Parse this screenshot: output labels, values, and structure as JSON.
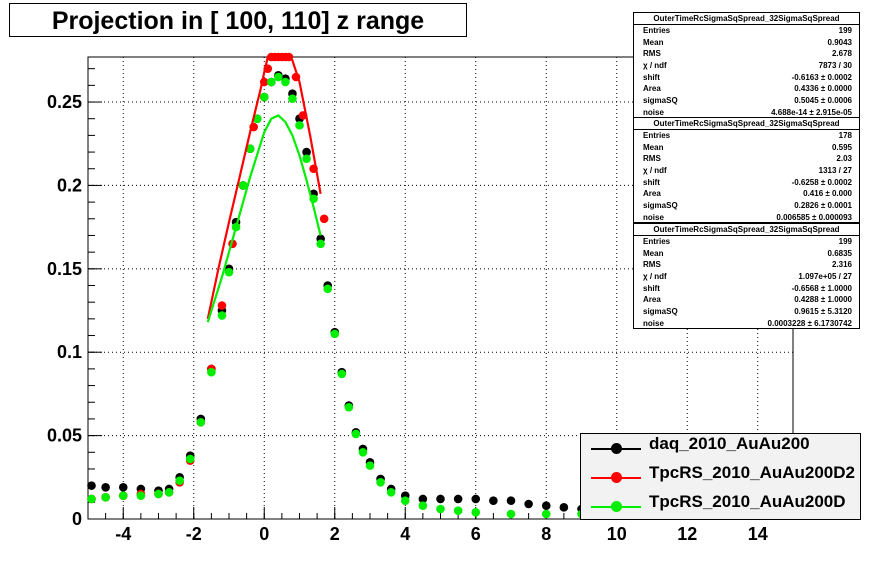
{
  "title": "Projection in [ 100, 110] z range",
  "stats": [
    {
      "header": "OuterTimeRcSigmaSqSpread_32SigmaSqSpread",
      "rows": [
        [
          "Entries",
          "199"
        ],
        [
          "Mean",
          "0.9043"
        ],
        [
          "RMS",
          "2.678"
        ],
        [
          "χ  / ndf",
          "7873 / 30"
        ],
        [
          "shift",
          "-0.6163 ± 0.0002"
        ],
        [
          "Area",
          "0.4336 ± 0.0000"
        ],
        [
          "sigmaSQ",
          "0.5045 ± 0.0006"
        ],
        [
          "noise",
          "4.688e-14 ± 2.915e-05"
        ]
      ]
    },
    {
      "header": "OuterTimeRcSigmaSqSpread_32SigmaSqSpread",
      "rows": [
        [
          "Entries",
          "178"
        ],
        [
          "Mean",
          "0.595"
        ],
        [
          "RMS",
          "2.03"
        ],
        [
          "χ  / ndf",
          "1313 / 27"
        ],
        [
          "shift",
          "-0.6258 ± 0.0002"
        ],
        [
          "Area",
          "0.416 ± 0.000"
        ],
        [
          "sigmaSQ",
          "0.2826 ± 0.0001"
        ],
        [
          "noise",
          "0.006585 ± 0.000093"
        ]
      ]
    },
    {
      "header": "OuterTimeRcSigmaSqSpread_32SigmaSqSpread",
      "rows": [
        [
          "Entries",
          "199"
        ],
        [
          "Mean",
          "0.6835"
        ],
        [
          "RMS",
          "2.316"
        ],
        [
          "χ  / ndf",
          "1.097e+05 / 27"
        ],
        [
          "shift",
          "-0.6568 ± 1.0000"
        ],
        [
          "Area",
          "0.4288 ± 1.0000"
        ],
        [
          "sigmaSQ",
          "0.9615 ± 5.3120"
        ],
        [
          "noise",
          "0.0003228 ± 6.1730742"
        ]
      ]
    }
  ],
  "legend": [
    {
      "label": "daq_2010_AuAu200",
      "color": "#000000"
    },
    {
      "label": "TpcRS_2010_AuAu200D2",
      "color": "#ff0000"
    },
    {
      "label": "TpcRS_2010_AuAu200D",
      "color": "#00ee00"
    }
  ],
  "chart_data": {
    "type": "scatter",
    "title": "Projection in [ 100, 110] z range",
    "xlim": [
      -5,
      15
    ],
    "ylim": [
      0,
      0.277
    ],
    "xticks": [
      -4,
      -2,
      0,
      2,
      4,
      6,
      8,
      10,
      12,
      14
    ],
    "xtick_labels": [
      "-4",
      "-2",
      "0",
      "2",
      "4",
      "6",
      "8",
      "10",
      "12",
      "14"
    ],
    "yticks": [
      0,
      0.05,
      0.1,
      0.15,
      0.2,
      0.25
    ],
    "ytick_labels": [
      "0",
      "0.05",
      "0.1",
      "0.15",
      "0.2",
      "0.25"
    ],
    "grid": true,
    "series": [
      {
        "name": "daq_2010_AuAu200",
        "color": "#000000",
        "x": [
          -4.9,
          -4.5,
          -4.0,
          -3.5,
          -3.0,
          -2.7,
          -2.4,
          -2.1,
          -1.8,
          -1.5,
          -1.2,
          -1.0,
          -0.8,
          -0.6,
          -0.4,
          -0.2,
          0.0,
          0.2,
          0.4,
          0.6,
          0.8,
          1.0,
          1.2,
          1.4,
          1.6,
          1.8,
          2.0,
          2.2,
          2.4,
          2.6,
          2.8,
          3.0,
          3.3,
          3.6,
          4.0,
          4.5,
          5.0,
          5.5,
          6.0,
          6.5,
          7.0,
          7.5,
          8.0,
          8.5,
          9.0,
          9.5
        ],
        "y": [
          0.02,
          0.019,
          0.019,
          0.018,
          0.017,
          0.018,
          0.025,
          0.038,
          0.06,
          0.09,
          0.125,
          0.15,
          0.178,
          0.2,
          0.222,
          0.24,
          0.253,
          0.262,
          0.266,
          0.264,
          0.255,
          0.24,
          0.22,
          0.195,
          0.168,
          0.14,
          0.112,
          0.088,
          0.068,
          0.052,
          0.042,
          0.034,
          0.024,
          0.018,
          0.014,
          0.012,
          0.012,
          0.012,
          0.012,
          0.011,
          0.011,
          0.009,
          0.008,
          0.007,
          0.006,
          0.005
        ]
      },
      {
        "name": "TpcRS_2010_AuAu200D2",
        "color": "#ff0000",
        "x": [
          -4.9,
          -4.5,
          -4.0,
          -3.5,
          -3.0,
          -2.7,
          -2.4,
          -2.1,
          -1.8,
          -1.5,
          -1.2,
          -0.9,
          -0.6,
          -0.3,
          0.0,
          0.1,
          0.2,
          0.3,
          0.4,
          0.5,
          0.6,
          0.7,
          0.9,
          1.1,
          1.4,
          1.7
        ],
        "y": [
          0.012,
          0.013,
          0.014,
          0.015,
          0.015,
          0.016,
          0.022,
          0.035,
          0.058,
          0.09,
          0.128,
          0.165,
          0.2,
          0.235,
          0.262,
          0.27,
          0.277,
          0.277,
          0.277,
          0.277,
          0.277,
          0.277,
          0.265,
          0.242,
          0.21,
          0.18
        ]
      },
      {
        "name": "TpcRS_2010_AuAu200D",
        "color": "#00ee00",
        "x": [
          -4.9,
          -4.5,
          -4.0,
          -3.5,
          -3.0,
          -2.7,
          -2.4,
          -2.1,
          -1.8,
          -1.5,
          -1.2,
          -1.0,
          -0.8,
          -0.6,
          -0.4,
          -0.2,
          0.0,
          0.2,
          0.4,
          0.6,
          0.8,
          1.0,
          1.2,
          1.4,
          1.6,
          1.8,
          2.0,
          2.2,
          2.4,
          2.6,
          2.8,
          3.0,
          3.3,
          3.6,
          4.0,
          4.5,
          5.0,
          5.5,
          6.0,
          7.0,
          8.0,
          9.0,
          9.5
        ],
        "y": [
          0.012,
          0.013,
          0.014,
          0.014,
          0.015,
          0.016,
          0.023,
          0.036,
          0.058,
          0.088,
          0.122,
          0.148,
          0.175,
          0.2,
          0.222,
          0.24,
          0.253,
          0.262,
          0.265,
          0.262,
          0.252,
          0.236,
          0.216,
          0.192,
          0.165,
          0.138,
          0.111,
          0.087,
          0.067,
          0.051,
          0.04,
          0.032,
          0.022,
          0.016,
          0.011,
          0.008,
          0.006,
          0.005,
          0.004,
          0.003,
          0.003,
          0.003,
          0.003
        ]
      }
    ],
    "curves": [
      {
        "name": "TpcRS_2010_AuAu200D2",
        "color": "#ff0000",
        "x": [
          -1.6,
          -1.3,
          -1.0,
          -0.7,
          -0.4,
          -0.1,
          0.0,
          0.1,
          0.2,
          0.3,
          0.4,
          0.5,
          0.6,
          0.7,
          0.8,
          1.0,
          1.3,
          1.6
        ],
        "y": [
          0.12,
          0.15,
          0.178,
          0.205,
          0.232,
          0.258,
          0.268,
          0.277,
          0.277,
          0.277,
          0.277,
          0.277,
          0.277,
          0.277,
          0.275,
          0.262,
          0.23,
          0.195
        ]
      },
      {
        "name": "TpcRS_2010_AuAu200D",
        "color": "#00ee00",
        "x": [
          -1.6,
          -1.2,
          -0.8,
          -0.4,
          0.0,
          0.2,
          0.4,
          0.6,
          0.8,
          1.0,
          1.2,
          1.4,
          1.6
        ],
        "y": [
          0.118,
          0.145,
          0.175,
          0.205,
          0.232,
          0.24,
          0.242,
          0.238,
          0.23,
          0.218,
          0.203,
          0.187,
          0.17
        ]
      }
    ]
  }
}
